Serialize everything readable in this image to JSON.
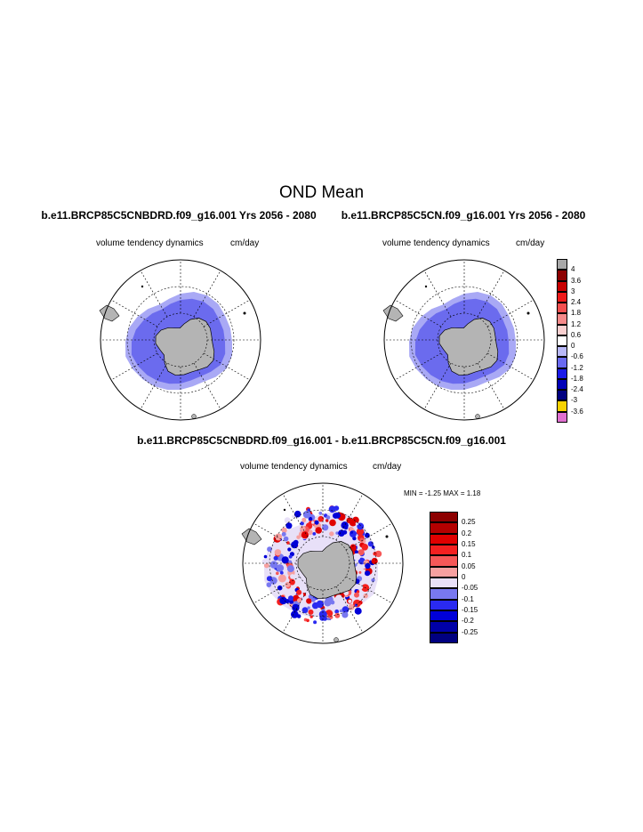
{
  "title": "OND Mean",
  "panels": [
    {
      "title": "b.e11.BRCP85C5CNBDRD.f09_g16.001  Yrs 2056 - 2080",
      "variable": "volume tendency dynamics",
      "units": "cm/day"
    },
    {
      "title": "b.e11.BRCP85C5CN.f09_g16.001  Yrs 2056 - 2080",
      "variable": "volume tendency dynamics",
      "units": "cm/day"
    }
  ],
  "diff": {
    "title": "b.e11.BRCP85C5CNBDRD.f09_g16.001 - b.e11.BRCP85C5CN.f09_g16.001",
    "variable": "volume tendency dynamics",
    "units": "cm/day",
    "min_label": "MIN =",
    "min_value": "-1.25",
    "max_label": "MAX =",
    "max_value": "1.18"
  },
  "colorbar_top": {
    "labels": [
      "4",
      "3.6",
      "3",
      "2.4",
      "1.8",
      "1.2",
      "0.6",
      "0",
      "-0.6",
      "-1.2",
      "-1.8",
      "-2.4",
      "-3",
      "-3.6"
    ],
    "colors": [
      "#a8a8a8",
      "#8c0000",
      "#c80000",
      "#ee1a1a",
      "#f45050",
      "#f68a8a",
      "#fad0d0",
      "#ffffff",
      "#b8b8f8",
      "#6a6af0",
      "#1a1ae8",
      "#0000b8",
      "#000080",
      "#f6d200",
      "#e070d0"
    ]
  },
  "colorbar_diff": {
    "labels": [
      "0.25",
      "0.2",
      "0.15",
      "0.1",
      "0.05",
      "0",
      "-0.05",
      "-0.1",
      "-0.15",
      "-0.2",
      "-0.25"
    ],
    "colors": [
      "#8c0000",
      "#b40000",
      "#e00000",
      "#f42020",
      "#f65858",
      "#f7a0a0",
      "#e8e0f8",
      "#7878f0",
      "#2a2af0",
      "#0000d8",
      "#0000a8",
      "#000080"
    ]
  }
}
